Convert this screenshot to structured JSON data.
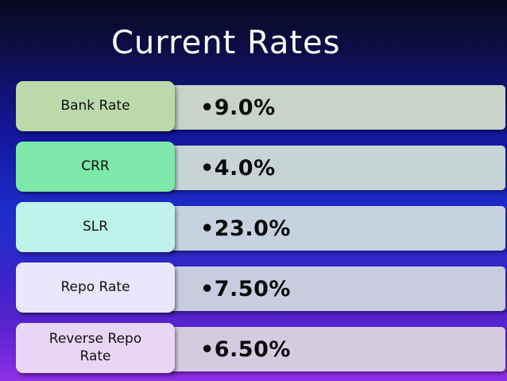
{
  "slide": {
    "title": "Current Rates",
    "rows": [
      {
        "label": "Bank Rate",
        "value": "•9.0%"
      },
      {
        "label": "CRR",
        "value": "•4.0%"
      },
      {
        "label": "SLR",
        "value": "•23.0%"
      },
      {
        "label": "Repo Rate",
        "value": "•7.50%"
      },
      {
        "label": "Reverse Repo Rate",
        "value": "•6.50%"
      }
    ]
  },
  "colors": {
    "row_label_backgrounds": [
      "#bcd9a9",
      "#7ee8a8",
      "#bff3ea",
      "#e8e7fb",
      "#e8d6f4"
    ],
    "row_value_backgrounds": [
      "#c9d3ca",
      "#c7d4d6",
      "#c7d2e1",
      "#c9ccdf",
      "#d4cbe1"
    ]
  }
}
